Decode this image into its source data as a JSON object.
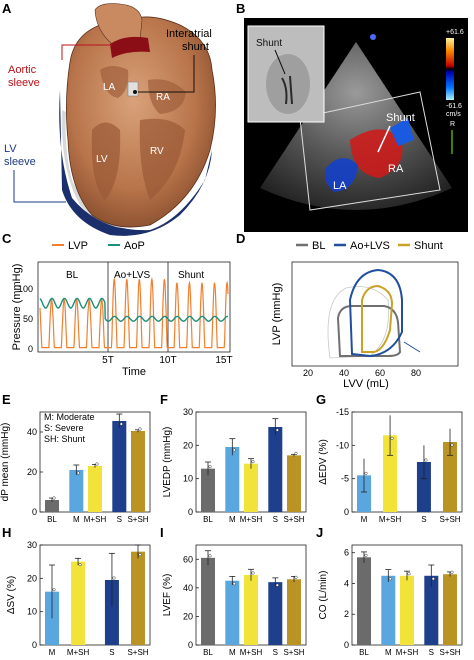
{
  "panel_letters": [
    "A",
    "B",
    "C",
    "D",
    "E",
    "F",
    "G",
    "H",
    "I",
    "J"
  ],
  "panel_a": {
    "aortic_sleeve": [
      "Aortic",
      "sleeve"
    ],
    "interatrial_shunt": [
      "Interatrial",
      "shunt"
    ],
    "lv_sleeve": [
      "LV",
      "sleeve"
    ],
    "chambers": [
      "LA",
      "RA",
      "LV",
      "RV"
    ]
  },
  "panel_b": {
    "inset_label": "Shunt",
    "shunt_label": "Shunt",
    "la": "LA",
    "ra": "RA",
    "scale_top": "+61.6",
    "scale_bottom": "-61.6",
    "scale_unit": "cm/s",
    "scale_marker": "R",
    "colors": {
      "pos": "#ffd400",
      "neg": "#00b7ff"
    }
  },
  "panel_c": {
    "legend": [
      "LVP",
      "AoP"
    ],
    "colors": [
      "#f08030",
      "#1a8f7a"
    ],
    "segments": [
      "BL",
      "Ao+LVS",
      "Shunt"
    ],
    "xticks": [
      "5T",
      "10T",
      "15T"
    ],
    "yticks": [
      "0",
      "50",
      "100"
    ],
    "xlabel": "Time",
    "ylabel": "Pressure (mmHg)"
  },
  "panel_d": {
    "legend": [
      "BL",
      "Ao+LVS",
      "Shunt"
    ],
    "colors": [
      "#707070",
      "#1f4f9e",
      "#c9a227"
    ],
    "xticks": [
      "20",
      "40",
      "60",
      "80"
    ],
    "xlabel": "LVV (mL)",
    "ylabel": "LVP (mmHg)"
  },
  "e_legend": [
    "M: Moderate",
    "S: Severe",
    "SH: Shunt"
  ],
  "chart_data": [
    {
      "panel": "E",
      "type": "bar",
      "categories": [
        "BL",
        "M",
        "M+SH",
        "S",
        "S+SH"
      ],
      "values": [
        6,
        21,
        23,
        45.5,
        40.5
      ],
      "errors": [
        1,
        2.5,
        0.8,
        3.5,
        0.6
      ],
      "ylabel": "dP mean (mmHg)",
      "ylim": [
        0,
        50
      ],
      "yticks": [
        0,
        20,
        40
      ]
    },
    {
      "panel": "F",
      "type": "bar",
      "categories": [
        "BL",
        "M",
        "M+SH",
        "S",
        "S+SH"
      ],
      "values": [
        13,
        19.5,
        14.5,
        25.5,
        17
      ],
      "errors": [
        2,
        2.5,
        1.5,
        2.5,
        0.3
      ],
      "ylabel": "LVEDP (mmHg)",
      "ylim": [
        0,
        30
      ],
      "yticks": [
        0,
        10,
        20,
        30
      ]
    },
    {
      "panel": "G",
      "type": "bar",
      "categories": [
        "M",
        "M+SH",
        "S",
        "S+SH"
      ],
      "values": [
        -5.5,
        -11.5,
        -7.5,
        -10.5
      ],
      "errors": [
        2.5,
        3,
        2.5,
        2
      ],
      "ylabel": "ΔEDV (%)",
      "ylim": [
        0,
        -15
      ],
      "yticks": [
        0,
        -5,
        -10,
        -15
      ]
    },
    {
      "panel": "H",
      "type": "bar",
      "categories": [
        "M",
        "M+SH",
        "S",
        "S+SH"
      ],
      "values": [
        16,
        25,
        19.5,
        28
      ],
      "errors": [
        8,
        1,
        8,
        2
      ],
      "ylabel": "ΔSV (%)",
      "ylim": [
        0,
        30
      ],
      "yticks": [
        0,
        10,
        20,
        30
      ]
    },
    {
      "panel": "I",
      "type": "bar",
      "categories": [
        "BL",
        "M",
        "M+SH",
        "S",
        "S+SH"
      ],
      "values": [
        61,
        45,
        49,
        44,
        46
      ],
      "errors": [
        5,
        3,
        4,
        3,
        2
      ],
      "ylabel": "LVEF (%)",
      "ylim": [
        0,
        70
      ],
      "yticks": [
        0,
        20,
        40,
        60
      ]
    },
    {
      "panel": "J",
      "type": "bar",
      "categories": [
        "BL",
        "M",
        "M+SH",
        "S",
        "S+SH"
      ],
      "values": [
        5.7,
        4.5,
        4.5,
        4.5,
        4.6
      ],
      "errors": [
        0.35,
        0.4,
        0.3,
        0.7,
        0.15
      ],
      "ylabel": "CO (L/min)",
      "ylim": [
        0,
        6.5
      ],
      "yticks": [
        0,
        2,
        4,
        6
      ]
    }
  ],
  "bar_colors": {
    "BL": "#6b6b6b",
    "M": "#5aa7e0",
    "M+SH": "#f2e33a",
    "S": "#1e3f8c",
    "S+SH": "#b99425"
  }
}
